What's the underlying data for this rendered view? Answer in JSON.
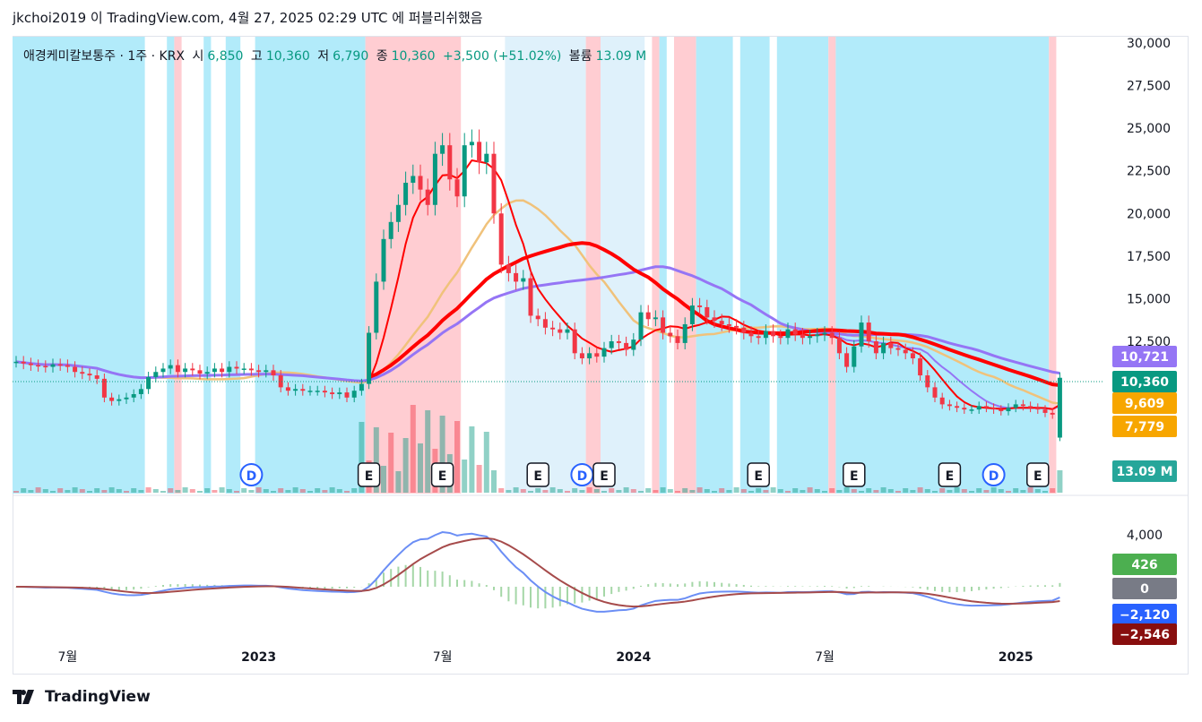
{
  "header": {
    "publish_line": "jkchoi2019 이 TradingView.com, 4월 27, 2025 02:29 UTC 에 퍼블리쉬했음"
  },
  "legend": {
    "symbol": "애경케미칼보통주 · 1주 · KRX",
    "open_label": "시",
    "open": "6,850",
    "high_label": "고",
    "high": "10,360",
    "low_label": "저",
    "low": "6,790",
    "close_label": "종",
    "close": "10,360",
    "change": "+3,500 (+51.02%)",
    "volume_label": "볼륨",
    "volume": "13.09 M"
  },
  "brand": {
    "name": "TradingView",
    "logo_icon": "tradingview-logo-icon"
  },
  "colors": {
    "up": "#089981",
    "down": "#f23645",
    "ma_purple": "#9575f5",
    "ma_orange": "#f0c27b",
    "ma_red": "#ff0000",
    "bg_cyan": "#b2ebfa",
    "bg_pink": "#ffcdd2",
    "bg_lightblue": "#dff1fb",
    "macd": "#6b8ef5",
    "signal": "#a64b4b"
  },
  "chart_data": [
    {
      "type": "candlestick",
      "title": "애경케미칼보통주 · 1주 · KRX",
      "y_ticks": [
        "30,000",
        "27,500",
        "25,000",
        "22,500",
        "20,000",
        "17,500",
        "15,000",
        "12,500"
      ],
      "ylim": [
        10000,
        30000
      ],
      "x_ticks": [
        "7월",
        "2023",
        "7월",
        "2024",
        "7월",
        "2025"
      ],
      "x_tick_weeks": [
        7,
        33,
        58,
        84,
        110,
        136
      ],
      "close_series": [
        11300,
        11200,
        11100,
        11050,
        11000,
        11150,
        11100,
        11000,
        10700,
        10600,
        10500,
        10300,
        9200,
        9000,
        9100,
        9200,
        9400,
        9700,
        10400,
        10700,
        10900,
        11100,
        10700,
        10900,
        10800,
        10600,
        10700,
        10900,
        10700,
        11000,
        10900,
        10900,
        10800,
        10700,
        10800,
        10500,
        9800,
        9600,
        9700,
        9600,
        9600,
        9600,
        9500,
        9400,
        9500,
        9200,
        9600,
        10000,
        13000,
        16000,
        18500,
        19500,
        20500,
        21800,
        22200,
        21400,
        20500,
        23500,
        24000,
        22000,
        21000,
        24000,
        24200,
        23000,
        23500,
        20000,
        17000,
        16500,
        16000,
        16200,
        14000,
        13800,
        13300,
        13200,
        13000,
        13200,
        11800,
        11500,
        11800,
        11600,
        12100,
        12500,
        12400,
        12000,
        12600,
        14200,
        13800,
        13900,
        13000,
        12800,
        12400,
        13500,
        14600,
        14500,
        13900,
        13700,
        13500,
        13400,
        13300,
        13000,
        12800,
        12700,
        13100,
        12800,
        12700,
        13200,
        12900,
        12700,
        12800,
        12900,
        13000,
        12700,
        11800,
        11000,
        12200,
        13600,
        12500,
        11800,
        12400,
        12100,
        12000,
        11800,
        11500,
        10500,
        9800,
        9200,
        8800,
        8700,
        8600,
        8500,
        8500,
        8700,
        8600,
        8500,
        8400,
        8600,
        8800,
        8700,
        8600,
        8500,
        8300,
        8200,
        10360
      ],
      "volume_unit": "M",
      "last_volume": "13.09 M",
      "price_labels": [
        {
          "name": "ma-long",
          "value": "10,721",
          "color": "#9575f5"
        },
        {
          "name": "last-price",
          "value": "10,360",
          "color": "#089981"
        },
        {
          "name": "ma-mid",
          "value": "9,609",
          "color": "#f7a600"
        },
        {
          "name": "ma-short",
          "value": "7,779",
          "color": "#f7a600"
        }
      ],
      "event_markers": [
        {
          "week": 32,
          "label": "D"
        },
        {
          "week": 48,
          "label": "E"
        },
        {
          "week": 58,
          "label": "E"
        },
        {
          "week": 71,
          "label": "E"
        },
        {
          "week": 77,
          "label": "D"
        },
        {
          "week": 80,
          "label": "E"
        },
        {
          "week": 101,
          "label": "E"
        },
        {
          "week": 114,
          "label": "E"
        },
        {
          "week": 127,
          "label": "E"
        },
        {
          "week": 133,
          "label": "D"
        },
        {
          "week": 139,
          "label": "E"
        }
      ]
    },
    {
      "type": "macd",
      "y_ticks": [
        "4,000"
      ],
      "value_labels": [
        {
          "name": "histogram",
          "value": "426",
          "color": "#4caf50"
        },
        {
          "name": "zero",
          "value": "0",
          "color": "#787b86"
        },
        {
          "name": "macd",
          "value": "−2,120",
          "color": "#2962ff"
        },
        {
          "name": "signal",
          "value": "−2,546",
          "color": "#880e0e"
        }
      ]
    }
  ]
}
